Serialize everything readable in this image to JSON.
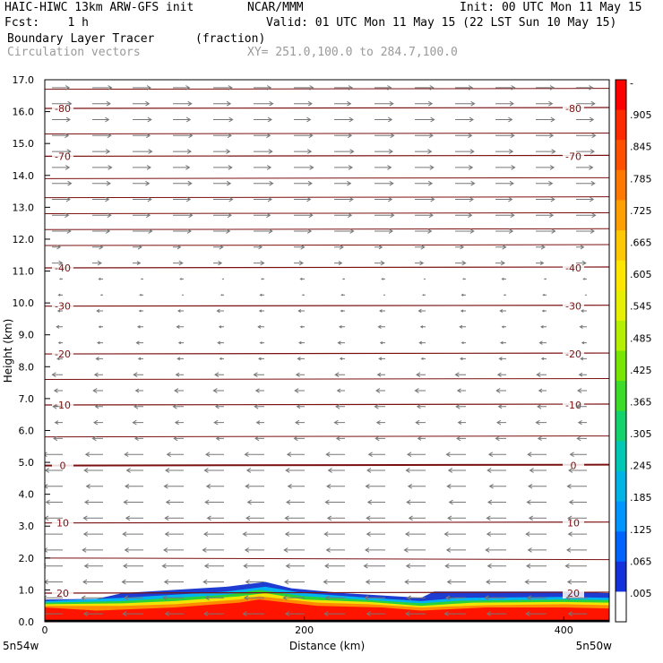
{
  "header": {
    "line1_left": "HAIC-HIWC 13km ARW-GFS init",
    "line1_mid": "NCAR/MMM",
    "line1_right": "Init: 00 UTC Mon 11 May 15",
    "line2_left": "Fcst:    1 h",
    "line2_right": "Valid: 01 UTC Mon 11 May 15 (22 LST Sun 10 May 15)",
    "line3_left": "Boundary Layer Tracer",
    "line3_mid": "(fraction)",
    "line4_left": "Circulation vectors",
    "line4_mid": "XY= 251.0,100.0 to 284.7,100.0"
  },
  "chart_data": {
    "type": "cross-section",
    "ylabel": "Height (km)",
    "xlabel": "Distance (km)",
    "xlim": [
      0,
      435
    ],
    "ylim": [
      0,
      17
    ],
    "y_ticks": [
      "0.0",
      "1.0",
      "2.0",
      "3.0",
      "4.0",
      "5.0",
      "6.0",
      "7.0",
      "8.0",
      "9.0",
      "10.0",
      "11.0",
      "12.0",
      "13.0",
      "14.0",
      "15.0",
      "16.0",
      "17.0"
    ],
    "x_ticks": [
      "0",
      "200",
      "400"
    ],
    "x_tick_values": [
      0,
      200,
      400
    ],
    "left_endpoint": "5n54w",
    "right_endpoint": "5n50w",
    "colorbar_labels": [
      "-",
      ".905",
      ".845",
      ".785",
      ".725",
      ".665",
      ".605",
      ".545",
      ".485",
      ".425",
      ".365",
      ".305",
      ".245",
      ".185",
      ".125",
      ".065",
      ".005"
    ],
    "colorbar_colors": [
      "#ff0000",
      "#ff2a00",
      "#ff5000",
      "#ff7800",
      "#ffa000",
      "#ffc800",
      "#ffe600",
      "#e6f000",
      "#b4f000",
      "#78e600",
      "#3cdc28",
      "#14d26e",
      "#00c8b4",
      "#00b4e6",
      "#0096ff",
      "#0064ff",
      "#1432dc",
      "#ffffff"
    ],
    "temperature_contours": [
      {
        "label": "20",
        "y": 0.9
      },
      {
        "label": "10",
        "y": 3.1
      },
      {
        "label": "0",
        "y": 4.9
      },
      {
        "label": "-10",
        "y": 6.8
      },
      {
        "label": "-20",
        "y": 8.4
      },
      {
        "label": "-30",
        "y": 9.9
      },
      {
        "label": "-40",
        "y": 11.1
      },
      {
        "label": "-70",
        "y": 14.6
      },
      {
        "label": "-80",
        "y": 16.1
      }
    ],
    "grid": false
  }
}
